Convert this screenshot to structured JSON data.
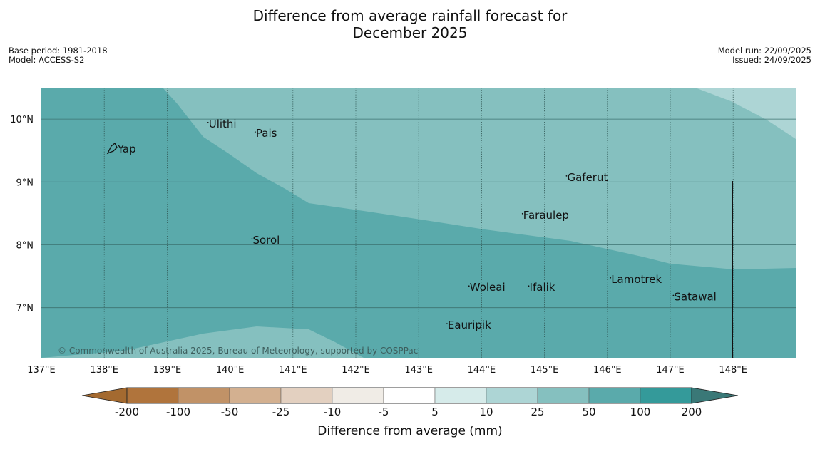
{
  "title": {
    "line1": "Difference from average rainfall forecast for",
    "line2": "December 2025"
  },
  "meta_left": {
    "base_period": "Base period: 1981-2018",
    "model": "Model: ACCESS-S2"
  },
  "meta_right": {
    "model_run": "Model run: 22/09/2025",
    "issued": "Issued: 24/09/2025"
  },
  "map": {
    "lon_range": [
      137,
      149
    ],
    "lat_range": [
      6.2,
      10.5
    ],
    "lon_ticks": [
      "137°E",
      "138°E",
      "139°E",
      "140°E",
      "141°E",
      "142°E",
      "143°E",
      "144°E",
      "145°E",
      "146°E",
      "147°E",
      "148°E"
    ],
    "lat_ticks": [
      "10°N",
      "9°N",
      "8°N",
      "7°N"
    ],
    "copyright": "© Commonwealth of Australia 2025, Bureau of Meteorology, supported by COSPPac",
    "colors": {
      "band_50_100": "#5aaaab",
      "band_25_50": "#85c0bf",
      "band_10_25": "#add5d5"
    },
    "places": [
      {
        "name": "Yap",
        "lon": 138.2,
        "lat": 9.5
      },
      {
        "name": "Ulithi",
        "lon": 139.65,
        "lat": 9.9
      },
      {
        "name": "Pais",
        "lon": 140.4,
        "lat": 9.75
      },
      {
        "name": "Sorol",
        "lon": 140.35,
        "lat": 8.05
      },
      {
        "name": "Gaferut",
        "lon": 145.35,
        "lat": 9.05
      },
      {
        "name": "Faraulep",
        "lon": 144.65,
        "lat": 8.45
      },
      {
        "name": "Woleai",
        "lon": 143.8,
        "lat": 7.3
      },
      {
        "name": "Ifalik",
        "lon": 144.75,
        "lat": 7.3
      },
      {
        "name": "Lamotrek",
        "lon": 146.05,
        "lat": 7.43
      },
      {
        "name": "Satawal",
        "lon": 147.05,
        "lat": 7.15
      },
      {
        "name": "Eauripik",
        "lon": 143.45,
        "lat": 6.7
      }
    ]
  },
  "colorbar": {
    "label": "Difference from average (mm)",
    "ticks": [
      "-200",
      "-100",
      "-50",
      "-25",
      "-10",
      "-5",
      "5",
      "10",
      "25",
      "50",
      "100",
      "200"
    ],
    "colors": [
      "#a46a30",
      "#b0743c",
      "#c19267",
      "#d3b090",
      "#e3d0c0",
      "#f0ece6",
      "#ffffff",
      "#d6ebea",
      "#add5d5",
      "#85c0bf",
      "#5aaaab",
      "#349a9a",
      "#3a7877"
    ]
  }
}
